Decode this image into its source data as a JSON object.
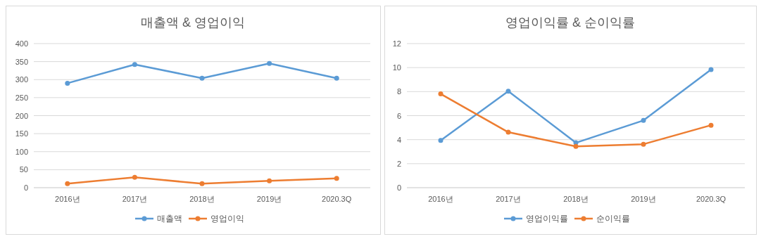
{
  "chart_data": [
    {
      "type": "line",
      "title": "매출액 & 영업이익",
      "categories": [
        "2016년",
        "2017년",
        "2018년",
        "2019년",
        "2020.3Q"
      ],
      "series": [
        {
          "name": "매출액",
          "color": "#5b9bd5",
          "values": [
            290,
            342,
            304,
            345,
            304
          ]
        },
        {
          "name": "영업이익",
          "color": "#ed7d31",
          "values": [
            11,
            29,
            11,
            19,
            26
          ]
        }
      ],
      "ylim": [
        0,
        400
      ],
      "yticks": [
        0,
        50,
        100,
        150,
        200,
        250,
        300,
        350,
        400
      ],
      "grid": "y",
      "legend": "bottom",
      "marker": "circle",
      "line_style": "solid"
    },
    {
      "type": "line",
      "title": "영업이익률 & 순이익률",
      "categories": [
        "2016년",
        "2017년",
        "2018년",
        "2019년",
        "2020.3Q"
      ],
      "series": [
        {
          "name": "영업이익률",
          "color": "#5b9bd5",
          "values": [
            3.93,
            8.04,
            3.74,
            5.6,
            9.84
          ]
        },
        {
          "name": "순이익률",
          "color": "#ed7d31",
          "values": [
            7.81,
            4.62,
            3.44,
            3.62,
            5.2
          ]
        }
      ],
      "ylim": [
        0,
        12
      ],
      "yticks": [
        0,
        2,
        4,
        6,
        8,
        10,
        12
      ],
      "grid": "y",
      "legend": "bottom",
      "marker": "circle",
      "line_style": "solid"
    }
  ]
}
